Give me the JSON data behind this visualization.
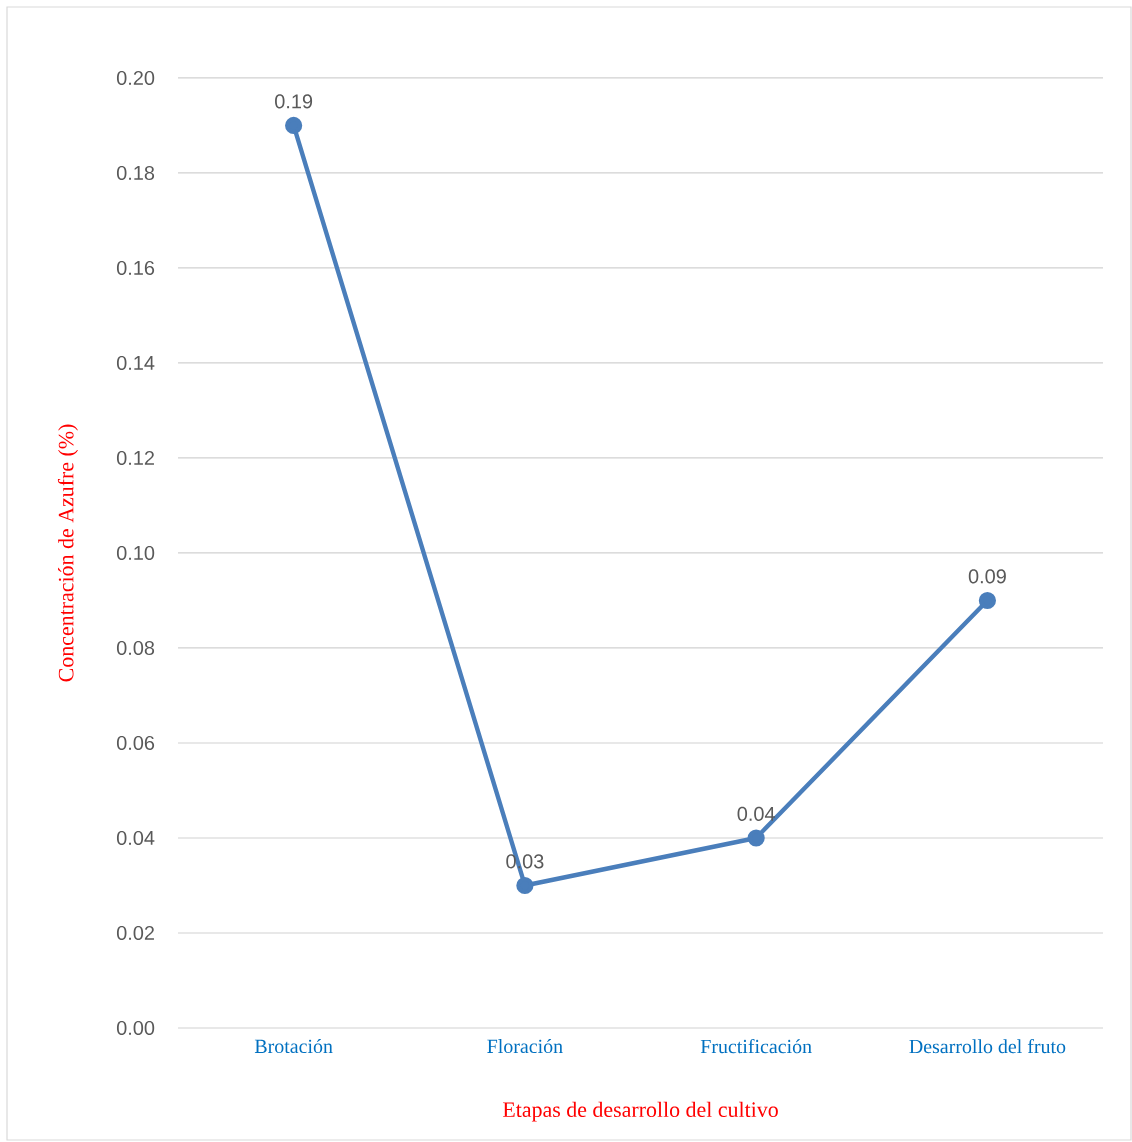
{
  "chart_data": {
    "type": "line",
    "xlabel": "Etapas de desarrollo del cultivo",
    "ylabel": "Concentración de Azufre (%)",
    "categories": [
      "Brotación",
      "Floración",
      "Fructificación",
      "Desarrollo del fruto"
    ],
    "series": [
      {
        "color": "#4a7ebb",
        "values": [
          0.19,
          0.03,
          0.04,
          0.09
        ],
        "value_labels": [
          "0.19",
          "0.03",
          "0.04",
          "0.09"
        ]
      }
    ],
    "ylim": [
      0,
      0.2
    ],
    "yticks": [
      {
        "value": 0,
        "label": "0.00"
      },
      {
        "value": 0.02,
        "label": "0.02"
      },
      {
        "value": 0.04,
        "label": "0.04"
      },
      {
        "value": 0.06,
        "label": "0.06"
      },
      {
        "value": 0.08,
        "label": "0.08"
      },
      {
        "value": 0.1,
        "label": "0.10"
      },
      {
        "value": 0.12,
        "label": "0.12"
      },
      {
        "value": 0.14,
        "label": "0.14"
      },
      {
        "value": 0.16,
        "label": "0.16"
      },
      {
        "value": 0.18,
        "label": "0.18"
      },
      {
        "value": 0.2,
        "label": "0.20"
      }
    ],
    "grid": "y",
    "marker": "circle",
    "line_style": "solid"
  }
}
